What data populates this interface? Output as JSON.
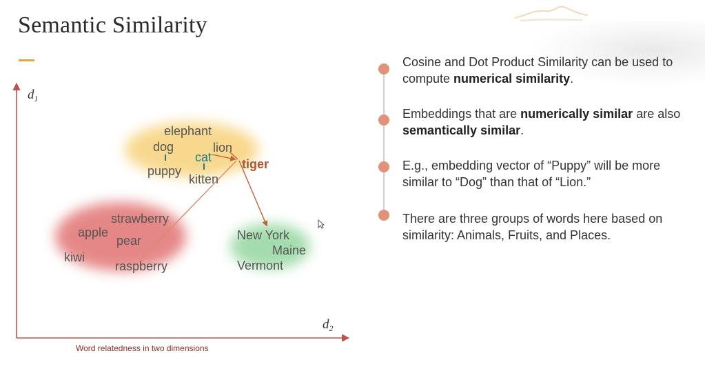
{
  "slide": {
    "title": "Semantic Similarity"
  },
  "colors": {
    "accent": "#e2a24a",
    "axis": "#c0504d",
    "cat_text": "#1a7f86",
    "tiger_text": "#b2552e",
    "bullet_dot": "#e0927a",
    "animals_cluster": "#f7d27a",
    "fruits_cluster": "#e06b6b",
    "places_cluster": "#8fd49a"
  },
  "diagram": {
    "axis_y_label": "d",
    "axis_y_sub": "1",
    "axis_x_label": "d",
    "axis_x_sub": "2",
    "caption": "Word relatedness in two dimensions",
    "clusters": {
      "animals": {
        "name": "Animals",
        "words": {
          "elephant": "elephant",
          "dog": "dog",
          "lion": "lion",
          "cat": "cat",
          "puppy": "puppy",
          "kitten": "kitten",
          "tiger": "tiger"
        }
      },
      "fruits": {
        "name": "Fruits",
        "words": {
          "strawberry": "strawberry",
          "apple": "apple",
          "pear": "pear",
          "kiwi": "kiwi",
          "raspberry": "raspberry"
        }
      },
      "places": {
        "name": "Places",
        "words": {
          "new_york": "New York",
          "maine": "Maine",
          "vermont": "Vermont"
        }
      }
    }
  },
  "bullets": [
    {
      "pre": "Cosine and Dot Product Similarity can be used to compute ",
      "bold": "numerical similarity",
      "mid": ".",
      "bold2": "",
      "post": ""
    },
    {
      "pre": "Embeddings that are ",
      "bold": "numerically similar",
      "mid": " are also ",
      "bold2": "semantically similar",
      "post": "."
    },
    {
      "pre": "E.g., embedding vector of “Puppy” will be more similar to “Dog” than that of “Lion.”",
      "bold": "",
      "mid": "",
      "bold2": "",
      "post": ""
    },
    {
      "pre": "There are three groups of words here based on similarity: Animals, Fruits, and Places.",
      "bold": "",
      "mid": "",
      "bold2": "",
      "post": ""
    }
  ]
}
